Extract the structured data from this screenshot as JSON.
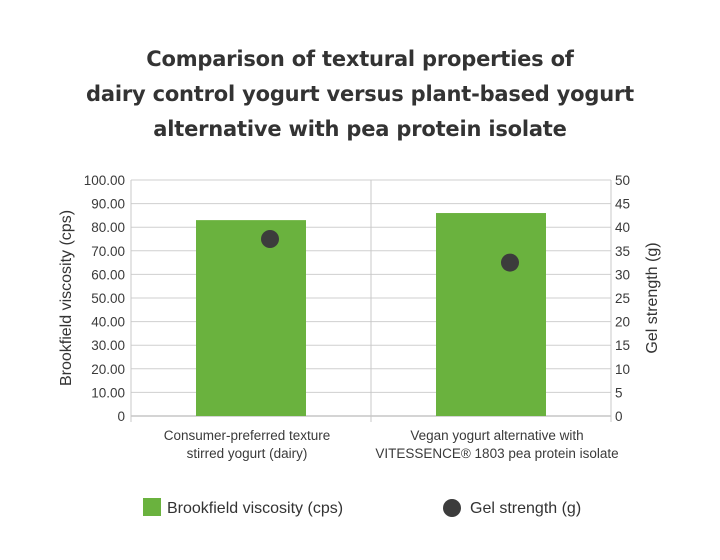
{
  "chart_data": {
    "type": "bar",
    "title_lines": [
      "Comparison of textural properties of",
      "dairy control yogurt versus plant-based yogurt",
      "alternative with pea protein isolate"
    ],
    "categories": [
      [
        "Consumer-preferred texture",
        "stirred yogurt (dairy)"
      ],
      [
        "Vegan yogurt alternative with",
        "VITESSENCE® 1803 pea protein isolate"
      ]
    ],
    "ylabel": "Brookfield viscosity (cps)",
    "y2label": "Gel strength (g)",
    "ylim": [
      0,
      100
    ],
    "y2lim": [
      0,
      50
    ],
    "yticks": [
      "100.00",
      "90.00",
      "80.00",
      "70.00",
      "60.00",
      "50.00",
      "40.00",
      "30.00",
      "20.00",
      "10.00",
      "0"
    ],
    "y2ticks": [
      "50",
      "45",
      "40",
      "35",
      "30",
      "25",
      "20",
      "15",
      "10",
      "5",
      "0"
    ],
    "grid": true,
    "legend_position": "bottom",
    "series": [
      {
        "name": "Brookfield viscosity (cps)",
        "type": "bar",
        "axis": "left",
        "values": [
          83,
          86
        ],
        "color": "#6ab23e"
      },
      {
        "name": "Gel strength (g)",
        "type": "scatter",
        "axis": "right",
        "values": [
          37.5,
          32.5
        ],
        "color": "#3c3c3c"
      }
    ]
  }
}
